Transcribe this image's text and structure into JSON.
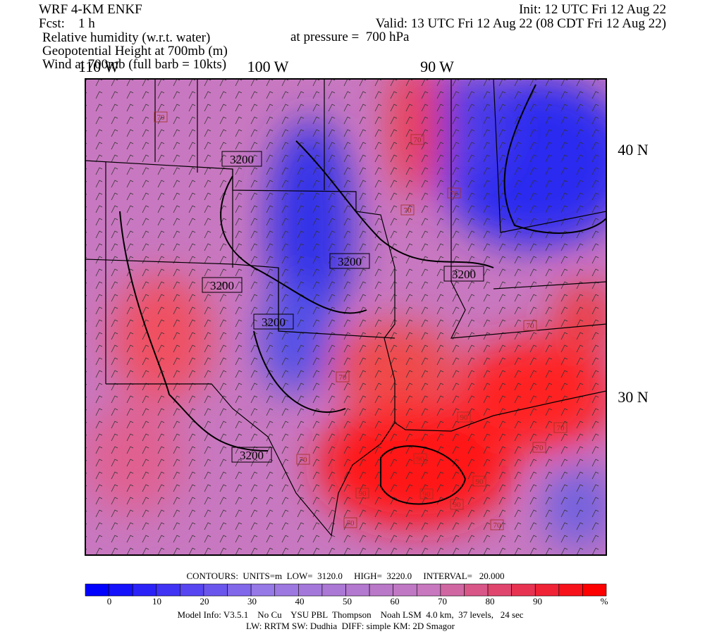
{
  "header": {
    "model": "WRF 4-KM ENKF",
    "forecast": "Fcst:    1 h",
    "fields": [
      "Relative humidity (w.r.t. water)",
      "Geopotential Height at 700mb (m)",
      "Wind at 700mb (full barb = 10kts)"
    ],
    "init": "Init: 12 UTC Fri 12 Aug 22",
    "valid": "Valid: 13 UTC Fri 12 Aug 22 (08 CDT Fri 12 Aug 22)",
    "pressure": "at pressure =  700 hPa"
  },
  "map": {
    "longitude_labels": [
      "110 W",
      "100 W",
      "90 W"
    ],
    "latitude_labels": [
      "40 N",
      "30 N"
    ],
    "contour_labels": [
      "3200",
      "3200",
      "3200",
      "3200",
      "3200",
      "3200"
    ],
    "rh_labels": [
      "70",
      "70",
      "70",
      "70",
      "70",
      "70",
      "70",
      "70",
      "70",
      "70",
      "70",
      "90",
      "90",
      "90",
      "90",
      "90",
      "90"
    ]
  },
  "colorbar": {
    "ticks": [
      "0",
      "10",
      "20",
      "30",
      "40",
      "50",
      "60",
      "70",
      "80",
      "90"
    ],
    "unit": "%"
  },
  "footer": {
    "contours": "CONTOURS:  UNITS=m  LOW=  3120.0     HIGH=  3220.0     INTERVAL=   20.000",
    "model_info": "Model Info: V3.5.1    No Cu    YSU PBL  Thompson    Noah LSM  4.0 km,  37 levels,   24 sec",
    "physics": "LW: RRTM SW: Dudhia  DIFF: simple KM: 2D Smagor"
  }
}
